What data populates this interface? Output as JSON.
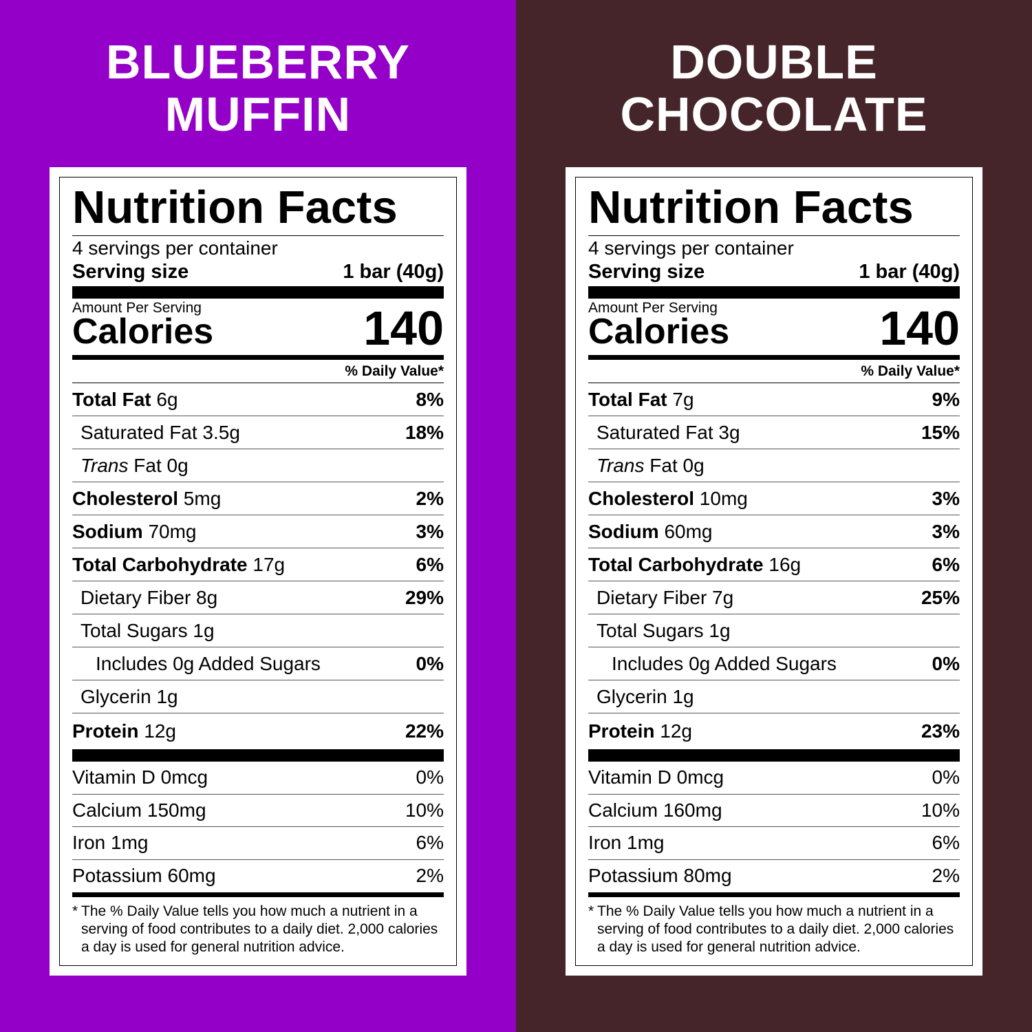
{
  "colors": {
    "left_bg": "#9400c8",
    "right_bg": "#45252a",
    "label_bg": "#ffffff"
  },
  "labels": [
    {
      "flavor_line1": "BLUEBERRY",
      "flavor_line2": "MUFFIN",
      "heading": "Nutrition Facts",
      "servings": "4 servings per container",
      "serving_size_label": "Serving size",
      "serving_size": "1 bar (40g)",
      "amount_per_serving": "Amount Per Serving",
      "calories_label": "Calories",
      "calories": "140",
      "dv_header": "% Daily Value*",
      "rows": [
        {
          "bold": "Total Fat",
          "text": " 6g",
          "dv": "8%",
          "indent": 0
        },
        {
          "text": "Saturated Fat 3.5g",
          "dv": "18%",
          "indent": 1
        },
        {
          "italic": "Trans",
          "text": " Fat 0g",
          "dv": "",
          "indent": 1
        },
        {
          "bold": "Cholesterol",
          "text": " 5mg",
          "dv": "2%",
          "indent": 0
        },
        {
          "bold": "Sodium",
          "text": " 70mg",
          "dv": "3%",
          "indent": 0
        },
        {
          "bold": "Total Carbohydrate",
          "text": " 17g",
          "dv": "6%",
          "indent": 0
        },
        {
          "text": "Dietary Fiber 8g",
          "dv": "29%",
          "indent": 1
        },
        {
          "text": "Total Sugars 1g",
          "dv": "",
          "indent": 1
        },
        {
          "text": "Includes 0g Added Sugars",
          "dv": "0%",
          "indent": 2
        },
        {
          "text": "Glycerin  1g",
          "dv": "",
          "indent": 1
        },
        {
          "bold": "Protein",
          "text": " 12g",
          "dv": "22%",
          "indent": 0
        }
      ],
      "vitamins": [
        {
          "text": "Vitamin D 0mcg",
          "dv": "0%"
        },
        {
          "text": "Calcium 150mg",
          "dv": "10%"
        },
        {
          "text": "Iron 1mg",
          "dv": "6%"
        },
        {
          "text": "Potassium 60mg",
          "dv": "2%"
        }
      ],
      "footnote_mark": "*",
      "footnote": "The % Daily Value tells you how much a nutrient in a serving of food contributes to a daily diet. 2,000 calories a day is used for general nutrition advice."
    },
    {
      "flavor_line1": "DOUBLE",
      "flavor_line2": "CHOCOLATE",
      "heading": "Nutrition Facts",
      "servings": "4 servings per container",
      "serving_size_label": "Serving size",
      "serving_size": "1 bar (40g)",
      "amount_per_serving": "Amount Per Serving",
      "calories_label": "Calories",
      "calories": "140",
      "dv_header": "% Daily Value*",
      "rows": [
        {
          "bold": "Total Fat",
          "text": " 7g",
          "dv": "9%",
          "indent": 0
        },
        {
          "text": "Saturated Fat 3g",
          "dv": "15%",
          "indent": 1
        },
        {
          "italic": "Trans",
          "text": " Fat 0g",
          "dv": "",
          "indent": 1
        },
        {
          "bold": "Cholesterol",
          "text": " 10mg",
          "dv": "3%",
          "indent": 0
        },
        {
          "bold": "Sodium",
          "text": " 60mg",
          "dv": "3%",
          "indent": 0
        },
        {
          "bold": "Total Carbohydrate",
          "text": " 16g",
          "dv": "6%",
          "indent": 0
        },
        {
          "text": "Dietary Fiber 7g",
          "dv": "25%",
          "indent": 1
        },
        {
          "text": "Total Sugars 1g",
          "dv": "",
          "indent": 1
        },
        {
          "text": "Includes 0g Added Sugars",
          "dv": "0%",
          "indent": 2
        },
        {
          "text": "Glycerin  1g",
          "dv": "",
          "indent": 1
        },
        {
          "bold": "Protein",
          "text": " 12g",
          "dv": "23%",
          "indent": 0
        }
      ],
      "vitamins": [
        {
          "text": "Vitamin D 0mcg",
          "dv": "0%"
        },
        {
          "text": "Calcium 160mg",
          "dv": "10%"
        },
        {
          "text": "Iron 1mg",
          "dv": "6%"
        },
        {
          "text": "Potassium 80mg",
          "dv": "2%"
        }
      ],
      "footnote_mark": "*",
      "footnote": "The % Daily Value tells you how much a nutrient in a serving of food contributes to a daily diet. 2,000 calories a day is used for general nutrition advice."
    }
  ]
}
